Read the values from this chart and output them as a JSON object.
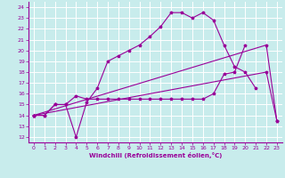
{
  "xlabel": "Windchill (Refroidissement éolien,°C)",
  "bg_color": "#c8ecec",
  "line_color": "#990099",
  "grid_color": "#ffffff",
  "xlim": [
    -0.5,
    23.5
  ],
  "ylim": [
    11.5,
    24.5
  ],
  "xticks": [
    0,
    1,
    2,
    3,
    4,
    5,
    6,
    7,
    8,
    9,
    10,
    11,
    12,
    13,
    14,
    15,
    16,
    17,
    18,
    19,
    20,
    21,
    22,
    23
  ],
  "yticks": [
    12,
    13,
    14,
    15,
    16,
    17,
    18,
    19,
    20,
    21,
    22,
    23,
    24
  ],
  "series": [
    {
      "x": [
        0,
        1,
        2,
        3,
        4,
        5,
        6,
        7,
        8,
        9,
        10,
        11,
        12,
        13,
        14,
        15,
        16,
        17,
        18,
        19,
        20,
        21
      ],
      "y": [
        14,
        14,
        15,
        15,
        12,
        15.2,
        16.5,
        19.0,
        19.5,
        20.0,
        20.5,
        21.3,
        22.2,
        23.5,
        23.5,
        23.0,
        23.5,
        22.8,
        20.5,
        18.5,
        18.0,
        16.5
      ]
    },
    {
      "x": [
        0,
        1,
        2,
        3,
        4,
        5,
        6,
        7,
        8,
        9,
        10,
        11,
        12,
        13,
        14,
        15,
        16,
        17,
        18,
        19,
        20
      ],
      "y": [
        14,
        14,
        15,
        15,
        15.8,
        15.5,
        15.5,
        15.5,
        15.5,
        15.5,
        15.5,
        15.5,
        15.5,
        15.5,
        15.5,
        15.5,
        15.5,
        16.0,
        17.8,
        18.0,
        20.5
      ]
    },
    {
      "x": [
        0,
        22,
        23
      ],
      "y": [
        14,
        18,
        13.5
      ]
    },
    {
      "x": [
        0,
        22,
        23
      ],
      "y": [
        14,
        20.5,
        13.5
      ]
    }
  ]
}
